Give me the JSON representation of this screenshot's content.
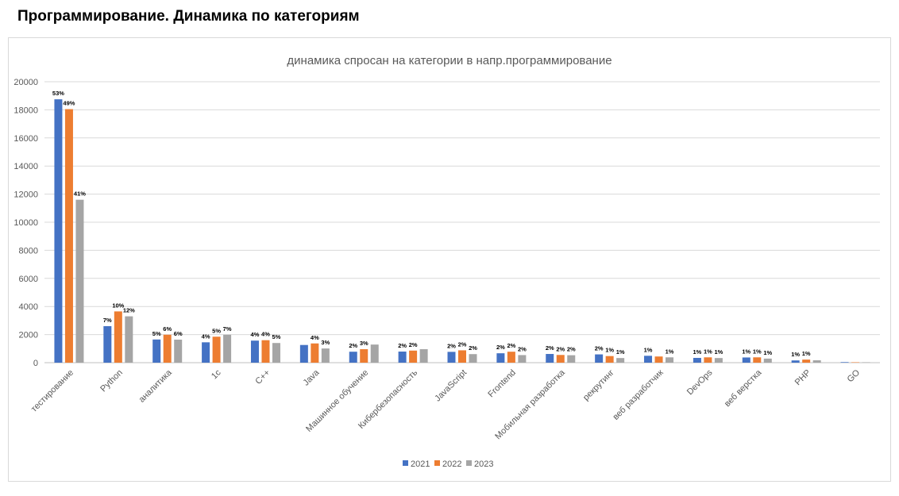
{
  "page": {
    "title": "Программирование.  Динамика по категориям"
  },
  "chart_data": {
    "type": "bar",
    "title": "динамика спросан на категории в напр.программирование",
    "xlabel": "",
    "ylabel": "",
    "ylim": [
      0,
      20000
    ],
    "yticks": [
      0,
      2000,
      4000,
      6000,
      8000,
      10000,
      12000,
      14000,
      16000,
      18000,
      20000
    ],
    "grid": true,
    "legend_position": "bottom",
    "categories": [
      "тестирование",
      "Python",
      "аналитика",
      "1с",
      "С++",
      "Java",
      "Машинное обучение",
      "Кибербезопасность",
      "JavaScript",
      "Frontend",
      "Мобильная разработка",
      "рекрутинг",
      "веб разработчик",
      "DevOps",
      "веб верстка",
      "PHP",
      "GO"
    ],
    "series": [
      {
        "name": "2021",
        "color": "#4472C4",
        "values": [
          18750,
          2600,
          1650,
          1450,
          1570,
          1260,
          780,
          790,
          770,
          670,
          620,
          590,
          490,
          340,
          370,
          160,
          40
        ],
        "labels": [
          "53%",
          "7%",
          "5%",
          "4%",
          "4%",
          "",
          "2%",
          "2%",
          "2%",
          "2%",
          "2%",
          "2%",
          "1%",
          "1%",
          "1%",
          "1%",
          ""
        ]
      },
      {
        "name": "2022",
        "color": "#ED7D31",
        "values": [
          18050,
          3650,
          1990,
          1850,
          1600,
          1370,
          960,
          860,
          880,
          780,
          550,
          470,
          440,
          380,
          380,
          220,
          30
        ],
        "labels": [
          "49%",
          "10%",
          "6%",
          "5%",
          "4%",
          "4%",
          "3%",
          "2%",
          "2%",
          "2%",
          "2%",
          "1%",
          "",
          "1%",
          "1%",
          "1%",
          ""
        ]
      },
      {
        "name": "2023",
        "color": "#A5A5A5",
        "values": [
          11600,
          3300,
          1640,
          1990,
          1400,
          1010,
          1290,
          960,
          610,
          540,
          530,
          330,
          380,
          330,
          290,
          170,
          30
        ],
        "labels": [
          "41%",
          "12%",
          "6%",
          "7%",
          "5%",
          "3%",
          "",
          "",
          "2%",
          "2%",
          "2%",
          "1%",
          "1%",
          "1%",
          "1%",
          "",
          ""
        ]
      }
    ]
  }
}
